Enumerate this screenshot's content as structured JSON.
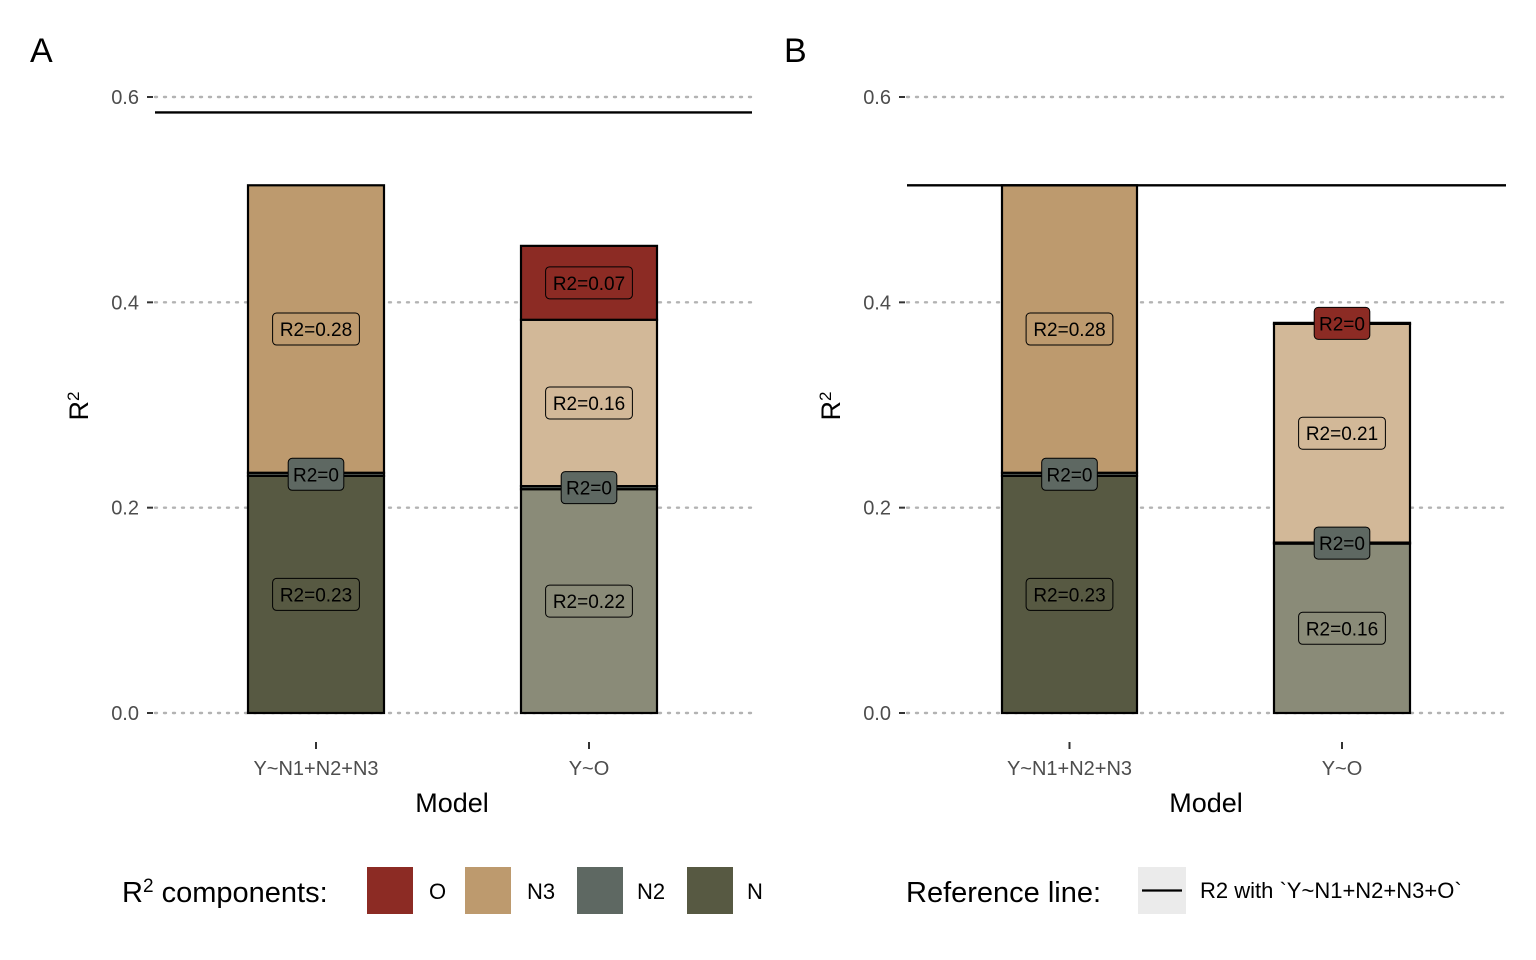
{
  "colors": {
    "O": "#8C2B24",
    "N3": "#BD9A6E",
    "N3_light": "#D2B898",
    "N2": "#5E6862",
    "N": "#575942",
    "N_light": "#8A8B78",
    "grid": "#b3b3b3",
    "reference_key_bg": "#ebebeb"
  },
  "chart_data": [
    {
      "panel": "A",
      "type": "bar",
      "stacked": true,
      "xlabel": "Model",
      "ylabel": "R",
      "ylabel_sup": "2",
      "ylim": [
        0,
        0.6
      ],
      "yticks": [
        "0.0",
        "0.2",
        "0.4",
        "0.6"
      ],
      "grid": "horizontal dotted",
      "reference_line": 0.585,
      "bars": [
        {
          "category": "Y~N1+N2+N3",
          "segments": [
            {
              "component": "N",
              "start": 0,
              "end": 0.231,
              "label": "R2=0.23",
              "color": "#575942"
            },
            {
              "component": "N2",
              "start": 0.231,
              "end": 0.234,
              "label": "R2=0",
              "color": "#5E6862"
            },
            {
              "component": "N3",
              "start": 0.234,
              "end": 0.514,
              "label": "R2=0.28",
              "color": "#BD9A6E"
            }
          ]
        },
        {
          "category": "Y~O",
          "segments": [
            {
              "component": "N",
              "start": 0,
              "end": 0.218,
              "label": "R2=0.22",
              "color": "#8A8B78"
            },
            {
              "component": "N2",
              "start": 0.218,
              "end": 0.221,
              "label": "R2=0",
              "color": "#5E6862"
            },
            {
              "component": "N3",
              "start": 0.221,
              "end": 0.383,
              "label": "R2=0.16",
              "color": "#D2B898"
            },
            {
              "component": "O",
              "start": 0.383,
              "end": 0.455,
              "label": "R2=0.07",
              "color": "#8C2B24"
            }
          ]
        }
      ]
    },
    {
      "panel": "B",
      "type": "bar",
      "stacked": true,
      "xlabel": "Model",
      "ylabel": "R",
      "ylabel_sup": "2",
      "ylim": [
        0,
        0.6
      ],
      "yticks": [
        "0.0",
        "0.2",
        "0.4",
        "0.6"
      ],
      "grid": "horizontal dotted",
      "reference_line": 0.514,
      "bars": [
        {
          "category": "Y~N1+N2+N3",
          "segments": [
            {
              "component": "N",
              "start": 0,
              "end": 0.231,
              "label": "R2=0.23",
              "color": "#575942"
            },
            {
              "component": "N2",
              "start": 0.231,
              "end": 0.234,
              "label": "R2=0",
              "color": "#5E6862"
            },
            {
              "component": "N3",
              "start": 0.234,
              "end": 0.514,
              "label": "R2=0.28",
              "color": "#BD9A6E"
            }
          ]
        },
        {
          "category": "Y~O",
          "segments": [
            {
              "component": "N",
              "start": 0,
              "end": 0.165,
              "label": "R2=0.16",
              "color": "#8A8B78"
            },
            {
              "component": "N2",
              "start": 0.165,
              "end": 0.166,
              "label": "R2=0",
              "color": "#5E6862"
            },
            {
              "component": "N3",
              "start": 0.166,
              "end": 0.379,
              "label": "R2=0.21",
              "color": "#D2B898"
            },
            {
              "component": "O",
              "start": 0.379,
              "end": 0.38,
              "label": "R2=0",
              "color": "#8C2B24"
            }
          ]
        }
      ]
    }
  ],
  "legend_components": {
    "title_pre": "R",
    "title_sup": "2",
    "title_post": " components:",
    "items": [
      {
        "key": "O",
        "label": "O",
        "color": "#8C2B24"
      },
      {
        "key": "N3",
        "label": "N3",
        "color": "#BD9A6E"
      },
      {
        "key": "N2",
        "label": "N2",
        "color": "#5E6862"
      },
      {
        "key": "N",
        "label": "N",
        "color": "#575942"
      }
    ]
  },
  "legend_reference": {
    "title": "Reference line:",
    "label": "R2 with `Y~N1+N2+N3+O`"
  }
}
